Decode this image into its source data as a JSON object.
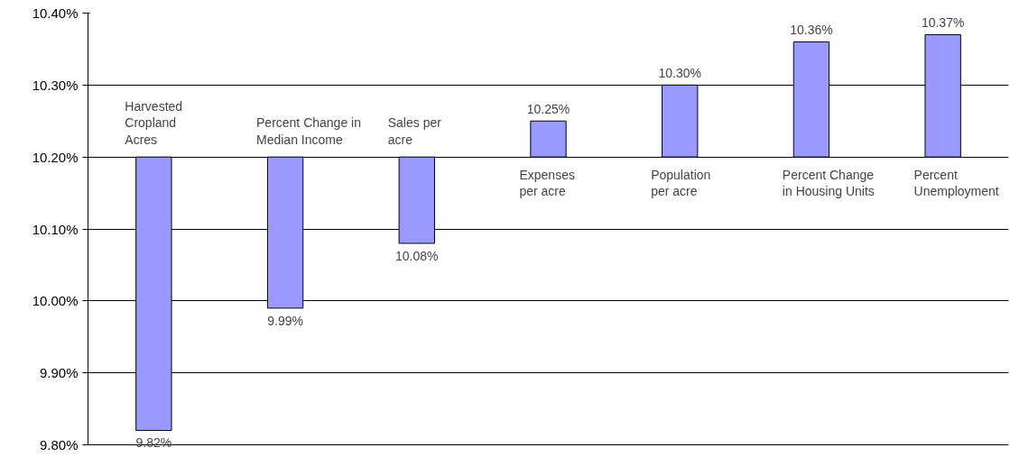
{
  "chart_data": {
    "type": "bar",
    "categories": [
      "Harvested\nCropland\n Acres",
      "Percent Change in\nMedian  Income",
      "Sales per\n acre",
      "Expenses\nper acre",
      "Population\nper acre",
      "Percent Change\nin Housing Units",
      "Percent\nUnemployment"
    ],
    "base": [
      10.2,
      10.2,
      10.2,
      10.2,
      10.2,
      10.2,
      10.2
    ],
    "values": [
      -0.38,
      -0.21,
      -0.12,
      0.05,
      0.1,
      0.16,
      0.17
    ],
    "value_labels": [
      "9.82%",
      "9.99%",
      "10.08%",
      "10.25%",
      "10.30%",
      "10.36%",
      "10.37%"
    ],
    "color": "#9999ff",
    "ylim": [
      9.8,
      10.4
    ],
    "yticks": [
      {
        "value": 9.8,
        "label": "9.80%"
      },
      {
        "value": 9.9,
        "label": "9.90%"
      },
      {
        "value": 10.0,
        "label": "10.00%"
      },
      {
        "value": 10.1,
        "label": "10.10%"
      },
      {
        "value": 10.2,
        "label": "10.20%"
      },
      {
        "value": 10.3,
        "label": "10.30%"
      },
      {
        "value": 10.4,
        "label": "10.40%"
      }
    ],
    "grid": "y"
  }
}
